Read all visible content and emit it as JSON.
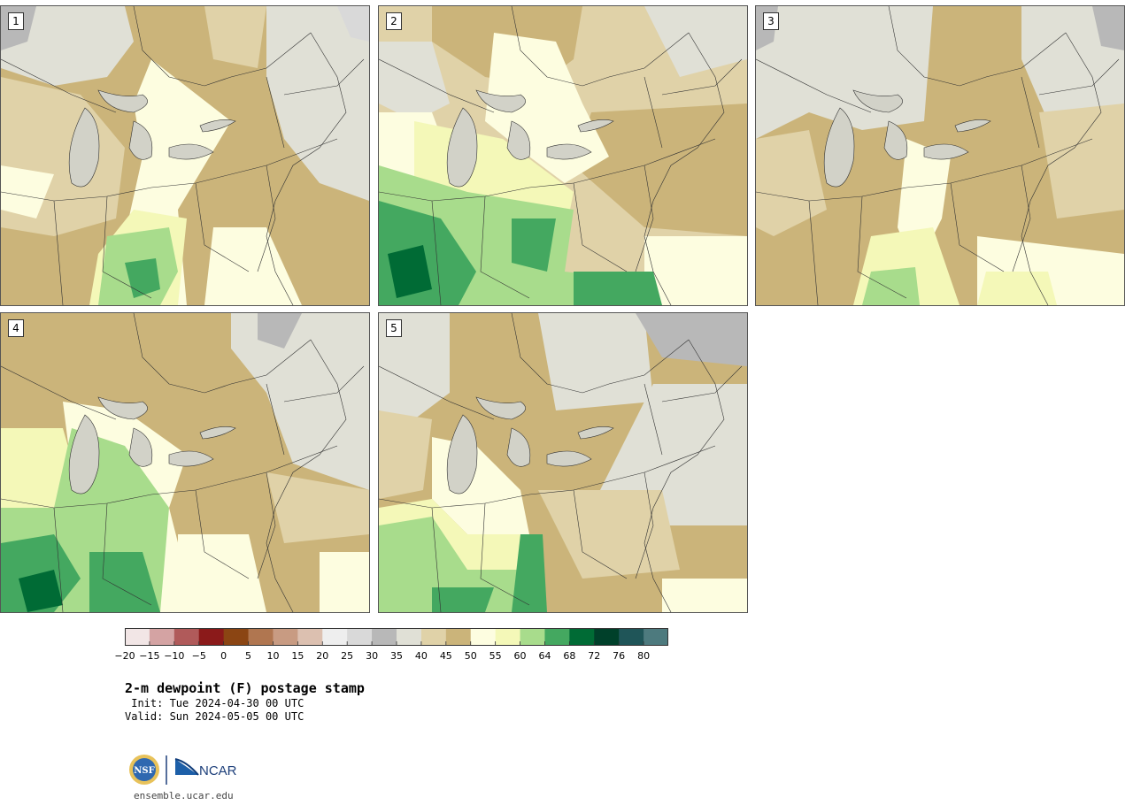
{
  "panels": [
    {
      "label": "1",
      "scheme": "a"
    },
    {
      "label": "2",
      "scheme": "b"
    },
    {
      "label": "3",
      "scheme": "c"
    },
    {
      "label": "4",
      "scheme": "d"
    },
    {
      "label": "5",
      "scheme": "e"
    }
  ],
  "legend": {
    "bins": [
      {
        "color": "#f2e6e6"
      },
      {
        "color": "#d4a3a3"
      },
      {
        "color": "#b05a5a"
      },
      {
        "color": "#8b1a1a"
      },
      {
        "color": "#8b4513"
      },
      {
        "color": "#b07650"
      },
      {
        "color": "#c89b82"
      },
      {
        "color": "#dcc0b0"
      },
      {
        "color": "#eeeeee"
      },
      {
        "color": "#d9d9d9"
      },
      {
        "color": "#b8b8b8"
      },
      {
        "color": "#e0e0d6"
      },
      {
        "color": "#e0d2a8"
      },
      {
        "color": "#cbb47a"
      },
      {
        "color": "#fdfde0"
      },
      {
        "color": "#f4f8b8"
      },
      {
        "color": "#a8dc8c"
      },
      {
        "color": "#44a860"
      },
      {
        "color": "#006b35"
      },
      {
        "color": "#00402a"
      },
      {
        "color": "#1f5558"
      },
      {
        "color": "#4d7a7e"
      }
    ],
    "ticks": [
      "−20",
      "−15",
      "−10",
      "−5",
      "0",
      "5",
      "10",
      "15",
      "20",
      "25",
      "30",
      "35",
      "40",
      "45",
      "50",
      "55",
      "60",
      "64",
      "68",
      "72",
      "76",
      "80"
    ]
  },
  "title": "2-m dewpoint (F) postage stamp",
  "init": " Init: Tue 2024-04-30 00 UTC",
  "valid": "Valid: Sun 2024-05-05 00 UTC",
  "logo": {
    "nsf": "NSF",
    "ncar": "NCAR"
  },
  "site": "ensemble.ucar.edu"
}
